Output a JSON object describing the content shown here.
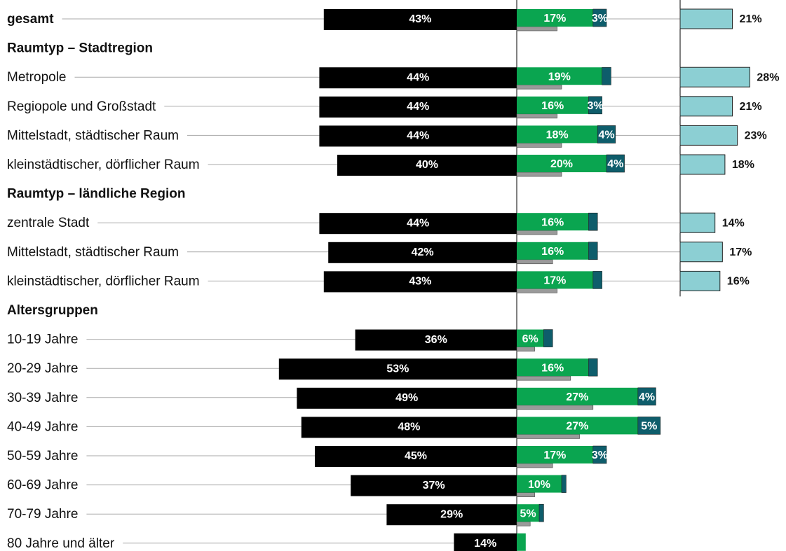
{
  "chart_data": {
    "type": "diverging_bar",
    "categories": [
      "gesamt",
      "Raumtyp – Stadtregion",
      "Metropole",
      "Regiopole und Großstadt",
      "Mittelstadt, städtischer Raum",
      "kleinstädtischer, dörflicher Raum",
      "Raumtyp – ländliche Region",
      "zentrale Stadt",
      "Mittelstadt, städtischer Raum",
      "kleinstädtischer, dörflicher Raum",
      "Altersgruppen",
      "10-19 Jahre",
      "20-29 Jahre",
      "30-39 Jahre",
      "40-49 Jahre",
      "50-59 Jahre",
      "60-69 Jahre",
      "70-79 Jahre",
      "80 Jahre und älter"
    ],
    "series": [
      {
        "color": "#000000",
        "values": [
          43,
          null,
          44,
          44,
          44,
          40,
          null,
          44,
          42,
          43,
          null,
          36,
          53,
          49,
          48,
          45,
          37,
          29,
          14
        ],
        "value_labels": [
          "43%",
          null,
          "44%",
          "44%",
          "44%",
          "40%",
          null,
          "44%",
          "42%",
          "43%",
          null,
          "36%",
          "53%",
          "49%",
          "48%",
          "45%",
          "37%",
          "29%",
          "14%"
        ]
      },
      {
        "color": "#0aa550",
        "values": [
          17,
          null,
          19,
          16,
          18,
          20,
          null,
          16,
          16,
          17,
          null,
          6,
          16,
          27,
          27,
          17,
          10,
          5,
          2
        ],
        "value_labels": [
          "17%",
          null,
          "19%",
          "16%",
          "18%",
          "20%",
          null,
          "16%",
          "16%",
          "17%",
          null,
          "6%",
          "16%",
          "27%",
          "27%",
          "17%",
          "10%",
          "5%",
          null
        ]
      },
      {
        "color": "#0e5d6b",
        "values": [
          3,
          null,
          2,
          3,
          4,
          4,
          null,
          2,
          2,
          2,
          null,
          2,
          2,
          4,
          5,
          3,
          1,
          1,
          null
        ],
        "value_labels": [
          "3%",
          null,
          null,
          "3%",
          "4%",
          "4%",
          null,
          null,
          null,
          null,
          null,
          null,
          null,
          "4%",
          "5%",
          "3%",
          null,
          null,
          null
        ]
      },
      {
        "color": "#9a9a9a",
        "values": [
          9,
          null,
          10,
          9,
          10,
          10,
          null,
          9,
          8,
          9,
          null,
          4,
          12,
          17,
          14,
          8,
          4,
          3,
          null
        ]
      },
      {
        "color": "#8ccfd3",
        "values": [
          21,
          null,
          28,
          21,
          23,
          18,
          null,
          14,
          17,
          16,
          null,
          null,
          null,
          null,
          null,
          null,
          null,
          null,
          null
        ],
        "value_labels": [
          "21%",
          null,
          "28%",
          "21%",
          "23%",
          "18%",
          null,
          "14%",
          "17%",
          "16%",
          null,
          null,
          null,
          null,
          null,
          null,
          null,
          null,
          null
        ]
      }
    ]
  }
}
